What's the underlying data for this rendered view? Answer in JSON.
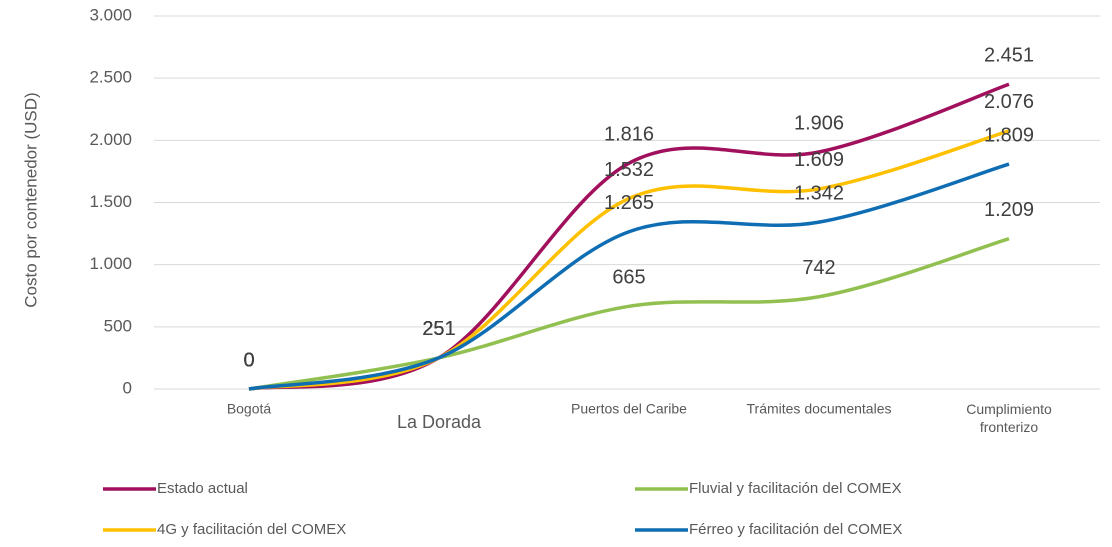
{
  "chart_data": {
    "type": "line",
    "y_label": "Costo por contenedor (USD)",
    "categories": [
      "Bogotá",
      "La Dorada",
      "Puertos del Caribe",
      "Trámites documentales",
      "Cumplimiento fronterizo"
    ],
    "series": [
      {
        "name": "Estado actual",
        "color": "#a0105c",
        "values": [
          0,
          251,
          1816,
          1906,
          2451
        ],
        "value_labels": [
          "0",
          "251",
          "1.816",
          "1.906",
          "2.451"
        ]
      },
      {
        "name": "Fluvial y facilitación del COMEX",
        "color": "#92c050",
        "values": [
          0,
          251,
          665,
          742,
          1209
        ],
        "value_labels": [
          "0",
          "251",
          "665",
          "742",
          "1.209"
        ]
      },
      {
        "name": "4G y facilitación del COMEX",
        "color": "#ffc000",
        "values": [
          0,
          251,
          1532,
          1609,
          2076
        ],
        "value_labels": [
          "0",
          "251",
          "1.532",
          "1.609",
          "2.076"
        ]
      },
      {
        "name": "Férreo y facilitación del COMEX",
        "color": "#0f6db3",
        "values": [
          0,
          251,
          1265,
          1342,
          1809
        ],
        "value_labels": [
          "0",
          "251",
          "1.265",
          "1.342",
          "1.809"
        ]
      }
    ],
    "ylim": [
      0,
      3000
    ],
    "yticks": [
      0,
      500,
      {
        "value": 1000,
        "label": "1.000"
      },
      {
        "value": 1500,
        "label": "1.500"
      },
      {
        "value": 2000,
        "label": "2.000"
      },
      {
        "value": 2500,
        "label": "2.500"
      },
      {
        "value": 3000,
        "label": "3.000"
      }
    ],
    "grid": true,
    "smooth": true,
    "legend": "bottom"
  }
}
